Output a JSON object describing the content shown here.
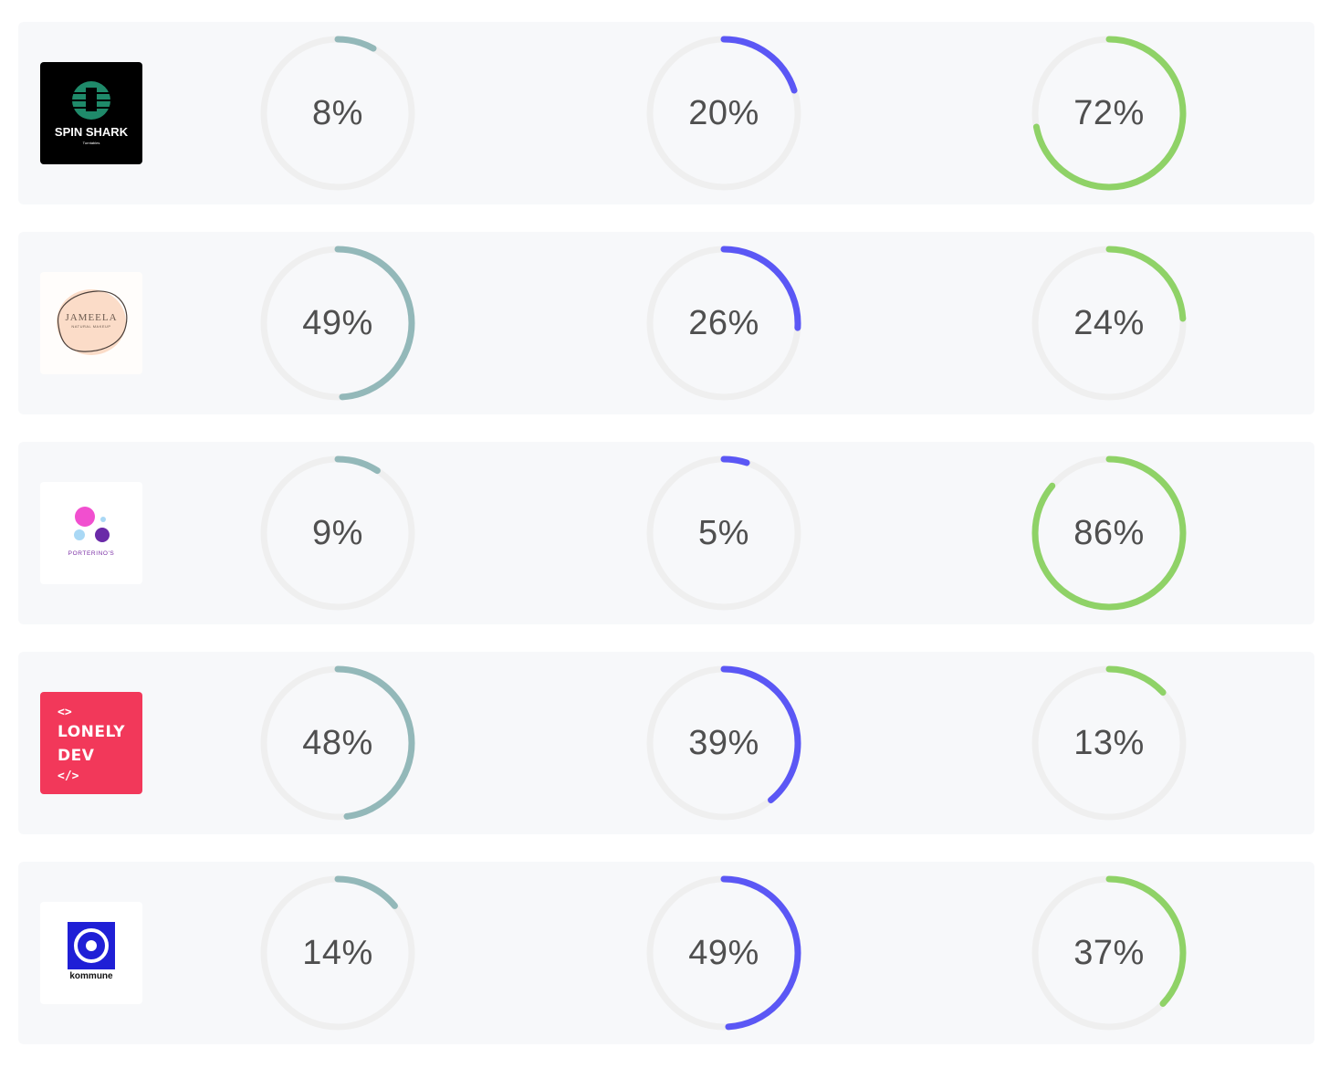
{
  "colors": {
    "track": "#efefef",
    "series": [
      "#93b8b9",
      "#5b57f5",
      "#8fd267"
    ],
    "row_bg": "#f7f8fa"
  },
  "rows": [
    {
      "brand": "spin-shark",
      "logo_text": [
        "SPIN SHARK",
        "Turntables"
      ],
      "logo_colors": {
        "bg": "#000000",
        "mark": "#1f8a6a",
        "text": "#ffffff"
      },
      "metrics": [
        {
          "value": 8,
          "label": "8%"
        },
        {
          "value": 20,
          "label": "20%"
        },
        {
          "value": 72,
          "label": "72%"
        }
      ]
    },
    {
      "brand": "jameela",
      "logo_text": [
        "JAMEELA",
        "NATURAL MAKEUP"
      ],
      "logo_colors": {
        "bg": "#fffdfb",
        "mark": "#fbdcc8",
        "text": "#6b5a4e"
      },
      "metrics": [
        {
          "value": 49,
          "label": "49%"
        },
        {
          "value": 26,
          "label": "26%"
        },
        {
          "value": 24,
          "label": "24%"
        }
      ]
    },
    {
      "brand": "porterinos",
      "logo_text": [
        "PORTERINO'S"
      ],
      "logo_colors": {
        "bg": "#ffffff",
        "mark": "#f14fcf",
        "text": "#7a2ea5"
      },
      "metrics": [
        {
          "value": 9,
          "label": "9%"
        },
        {
          "value": 5,
          "label": "5%"
        },
        {
          "value": 86,
          "label": "86%"
        }
      ]
    },
    {
      "brand": "lonely-dev",
      "logo_text": [
        "<>",
        "LONELY",
        "DEV",
        "</>"
      ],
      "logo_colors": {
        "bg": "#f2385a",
        "mark": "#ffffff",
        "text": "#ffffff"
      },
      "metrics": [
        {
          "value": 48,
          "label": "48%"
        },
        {
          "value": 39,
          "label": "39%"
        },
        {
          "value": 13,
          "label": "13%"
        }
      ]
    },
    {
      "brand": "kommune",
      "logo_text": [
        "kommune"
      ],
      "logo_colors": {
        "bg": "#ffffff",
        "mark": "#1f1fd6",
        "text": "#111111"
      },
      "metrics": [
        {
          "value": 14,
          "label": "14%"
        },
        {
          "value": 49,
          "label": "49%"
        },
        {
          "value": 37,
          "label": "37%"
        }
      ]
    }
  ]
}
